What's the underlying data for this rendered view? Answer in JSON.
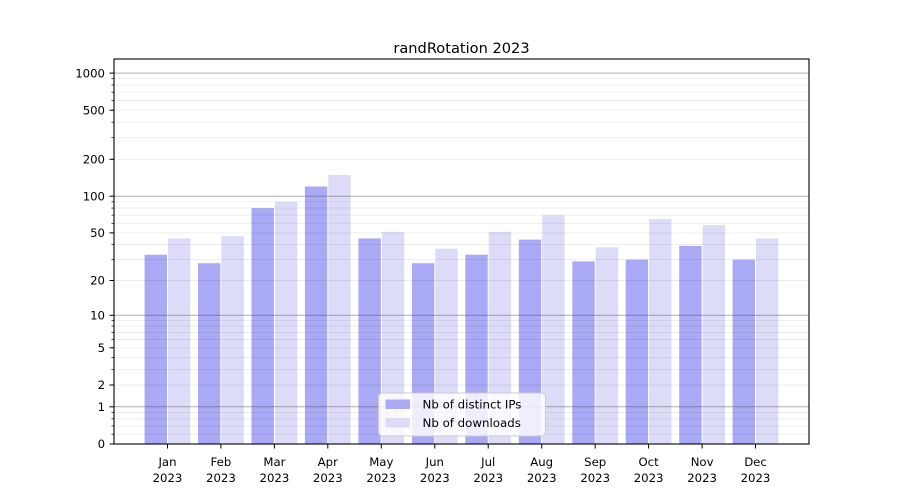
{
  "title": "randRotation 2023",
  "chart_data": {
    "type": "bar",
    "title": "randRotation 2023",
    "categories": [
      "Jan 2023",
      "Feb 2023",
      "Mar 2023",
      "Apr 2023",
      "May 2023",
      "Jun 2023",
      "Jul 2023",
      "Aug 2023",
      "Sep 2023",
      "Oct 2023",
      "Nov 2023",
      "Dec 2023"
    ],
    "series": [
      {
        "name": "Nb of distinct IPs",
        "color": "#a9a9f5",
        "values": [
          33,
          28,
          80,
          120,
          45,
          28,
          33,
          44,
          29,
          30,
          39,
          30
        ]
      },
      {
        "name": "Nb of downloads",
        "color": "#dcdcf8",
        "values": [
          45,
          47,
          90,
          149,
          51,
          37,
          51,
          70,
          38,
          65,
          58,
          45
        ]
      }
    ],
    "xlabel": "",
    "ylabel": "",
    "y_scale": "symlog (position proportional to ln(1+value))",
    "y_tick_labels": [
      1000,
      500,
      200,
      100,
      50,
      20,
      10,
      5,
      2,
      1,
      0
    ],
    "major_gridlines": [
      1,
      10,
      100,
      1000
    ],
    "ylim": [
      0,
      1300
    ],
    "grid": true,
    "legend": {
      "position": "lower-center",
      "labels": [
        "Nb of distinct IPs",
        "Nb of downloads"
      ]
    },
    "colors": {
      "background": "#ffffff",
      "axis": "#000000",
      "major_grid": "#b3b3b3",
      "minor_grid": "#ebebeb",
      "legend_border": "#cccccc"
    }
  }
}
